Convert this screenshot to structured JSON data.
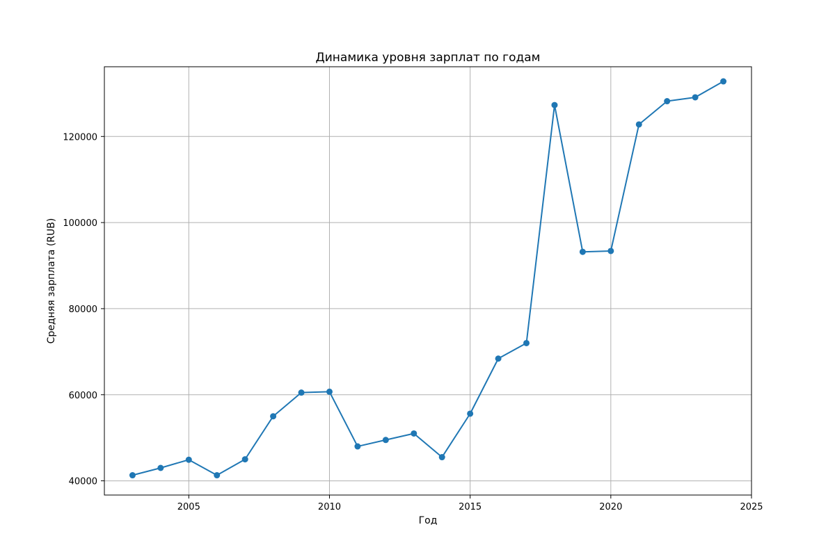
{
  "chart_data": {
    "type": "line",
    "title": "Динамика уровня зарплат по годам",
    "xlabel": "Год",
    "ylabel": "Средняя зарплата (RUB)",
    "xlim": [
      2002,
      2025
    ],
    "ylim": [
      36700,
      136200
    ],
    "x_ticks": [
      2005,
      2010,
      2015,
      2020,
      2025
    ],
    "y_ticks": [
      40000,
      60000,
      80000,
      100000,
      120000
    ],
    "grid": true,
    "legend": "none",
    "colors": {
      "series": "#1f77b4",
      "grid": "#b0b0b0",
      "axes": "#000000"
    },
    "series": [
      {
        "x": [
          2003,
          2004,
          2005,
          2006,
          2007,
          2008,
          2009,
          2010,
          2011,
          2012,
          2013,
          2014,
          2015,
          2016,
          2017,
          2018,
          2019,
          2020,
          2021,
          2022,
          2023,
          2024
        ],
        "values": [
          41300,
          43000,
          44900,
          41300,
          45000,
          55000,
          60500,
          60700,
          48000,
          49500,
          51000,
          45500,
          55600,
          68400,
          72000,
          127300,
          93200,
          93400,
          122800,
          128200,
          129100,
          132800
        ]
      }
    ]
  }
}
